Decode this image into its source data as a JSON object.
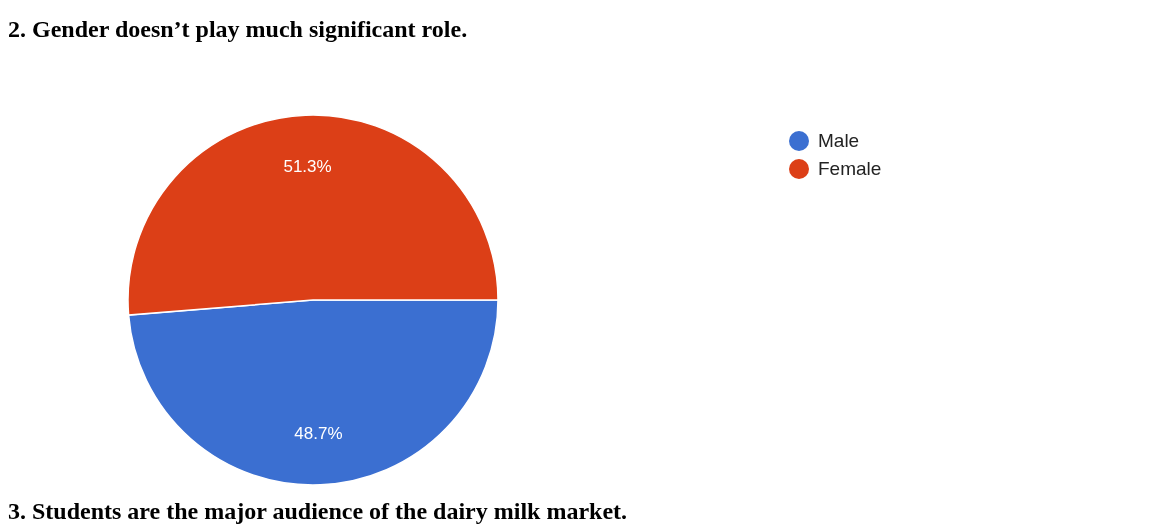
{
  "chart_data": {
    "type": "pie",
    "title": "2. Gender doesn’t play much significant role.",
    "categories": [
      "Male",
      "Female"
    ],
    "values": [
      48.7,
      51.3
    ],
    "colors": [
      "#3b6fd1",
      "#dc3f17"
    ],
    "value_labels": [
      "48.7%",
      "51.3%"
    ],
    "legend": "top right",
    "annotations": [
      "3. Students are the major audience of the dairy milk market."
    ]
  }
}
